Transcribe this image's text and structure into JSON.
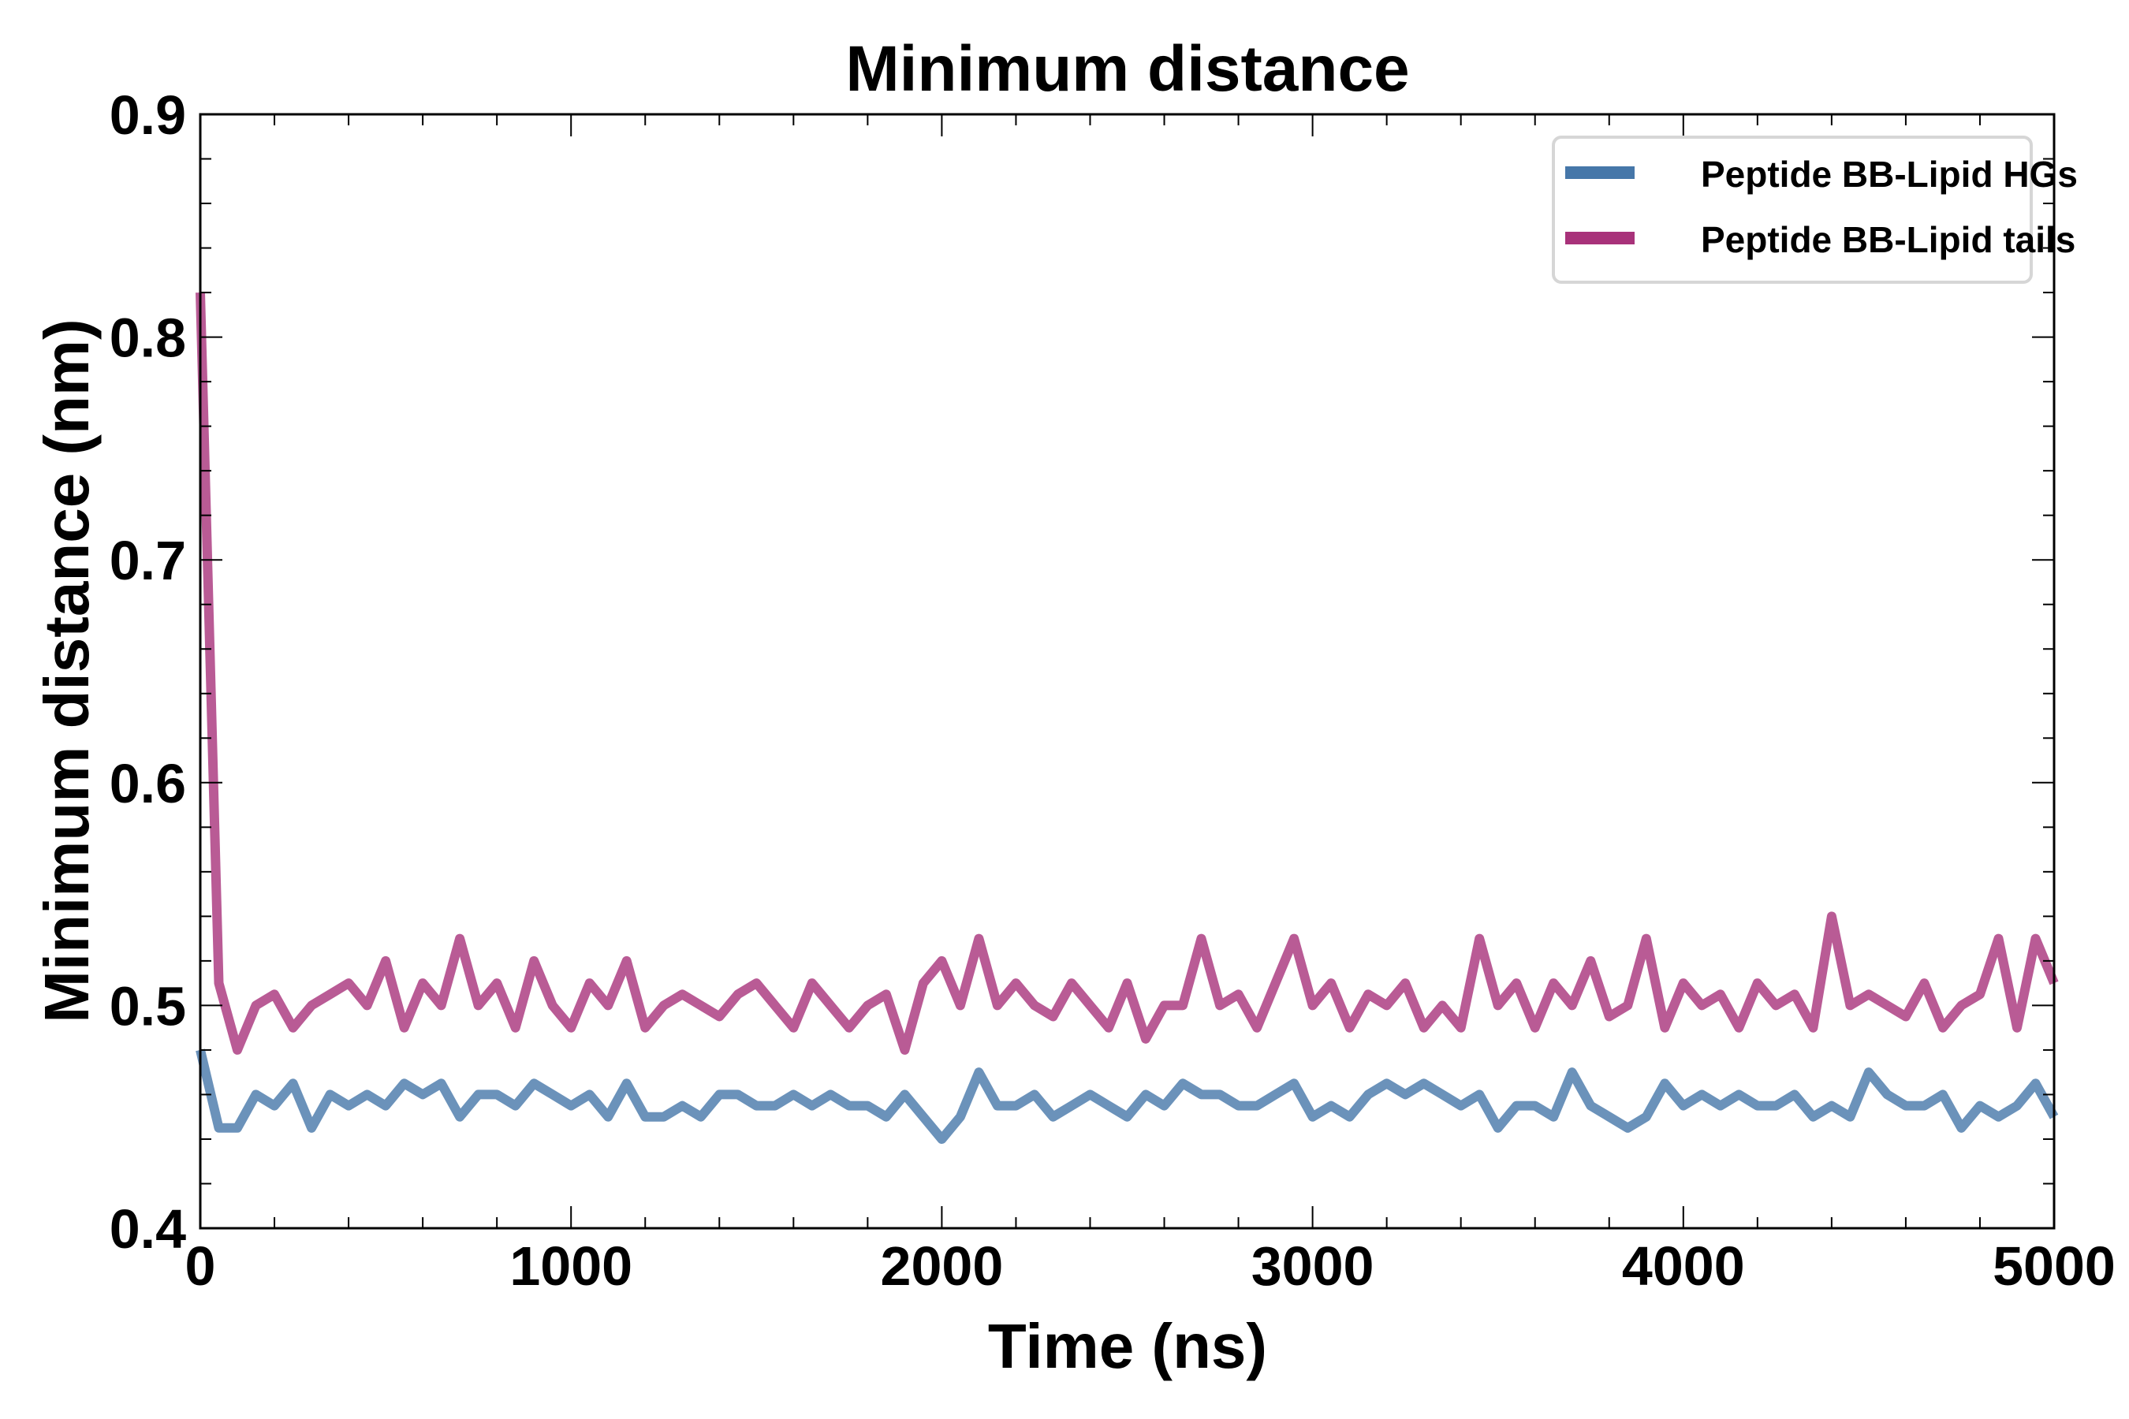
{
  "chart_data": {
    "type": "line",
    "title": "Minimum distance",
    "xlabel": "Time (ns)",
    "ylabel": "Minimum distance (nm)",
    "xlim": [
      0,
      5000
    ],
    "ylim": [
      0.4,
      0.9
    ],
    "xticks": [
      "0",
      "1000",
      "2000",
      "3000",
      "4000",
      "5000"
    ],
    "yticks": [
      "0.4",
      "0.5",
      "0.6",
      "0.7",
      "0.8",
      "0.9"
    ],
    "grid": false,
    "legend_position": "top-right",
    "x": [
      0,
      50,
      100,
      150,
      200,
      250,
      300,
      350,
      400,
      450,
      500,
      550,
      600,
      650,
      700,
      750,
      800,
      850,
      900,
      950,
      1000,
      1050,
      1100,
      1150,
      1200,
      1250,
      1300,
      1350,
      1400,
      1450,
      1500,
      1550,
      1600,
      1650,
      1700,
      1750,
      1800,
      1850,
      1900,
      1950,
      2000,
      2050,
      2100,
      2150,
      2200,
      2250,
      2300,
      2350,
      2400,
      2450,
      2500,
      2550,
      2600,
      2650,
      2700,
      2750,
      2800,
      2850,
      2900,
      2950,
      3000,
      3050,
      3100,
      3150,
      3200,
      3250,
      3300,
      3350,
      3400,
      3450,
      3500,
      3550,
      3600,
      3650,
      3700,
      3750,
      3800,
      3850,
      3900,
      3950,
      4000,
      4050,
      4100,
      4150,
      4200,
      4250,
      4300,
      4350,
      4400,
      4450,
      4500,
      4550,
      4600,
      4650,
      4700,
      4750,
      4800,
      4850,
      4900,
      4950,
      5000
    ],
    "series": [
      {
        "name": "Peptide BB-Lipid HGs",
        "color": "#4677a9",
        "values": [
          0.48,
          0.445,
          0.445,
          0.46,
          0.455,
          0.465,
          0.445,
          0.46,
          0.455,
          0.46,
          0.455,
          0.465,
          0.46,
          0.465,
          0.45,
          0.46,
          0.46,
          0.455,
          0.465,
          0.46,
          0.455,
          0.46,
          0.45,
          0.465,
          0.45,
          0.45,
          0.455,
          0.45,
          0.46,
          0.46,
          0.455,
          0.455,
          0.46,
          0.455,
          0.46,
          0.455,
          0.455,
          0.45,
          0.46,
          0.45,
          0.44,
          0.45,
          0.47,
          0.455,
          0.455,
          0.46,
          0.45,
          0.455,
          0.46,
          0.455,
          0.45,
          0.46,
          0.455,
          0.465,
          0.46,
          0.46,
          0.455,
          0.455,
          0.46,
          0.465,
          0.45,
          0.455,
          0.45,
          0.46,
          0.465,
          0.46,
          0.465,
          0.46,
          0.455,
          0.46,
          0.445,
          0.455,
          0.455,
          0.45,
          0.47,
          0.455,
          0.45,
          0.445,
          0.45,
          0.465,
          0.455,
          0.46,
          0.455,
          0.46,
          0.455,
          0.455,
          0.46,
          0.45,
          0.455,
          0.45,
          0.47,
          0.46,
          0.455,
          0.455,
          0.46,
          0.445,
          0.455,
          0.45,
          0.455,
          0.465,
          0.45
        ]
      },
      {
        "name": "Peptide BB-Lipid tails",
        "color": "#a8327a",
        "values": [
          0.82,
          0.51,
          0.48,
          0.5,
          0.505,
          0.49,
          0.5,
          0.505,
          0.51,
          0.5,
          0.52,
          0.49,
          0.51,
          0.5,
          0.53,
          0.5,
          0.51,
          0.49,
          0.52,
          0.5,
          0.49,
          0.51,
          0.5,
          0.52,
          0.49,
          0.5,
          0.505,
          0.5,
          0.495,
          0.505,
          0.51,
          0.5,
          0.49,
          0.51,
          0.5,
          0.49,
          0.5,
          0.505,
          0.48,
          0.51,
          0.52,
          0.5,
          0.53,
          0.5,
          0.51,
          0.5,
          0.495,
          0.51,
          0.5,
          0.49,
          0.51,
          0.485,
          0.5,
          0.5,
          0.53,
          0.5,
          0.505,
          0.49,
          0.51,
          0.53,
          0.5,
          0.51,
          0.49,
          0.505,
          0.5,
          0.51,
          0.49,
          0.5,
          0.49,
          0.53,
          0.5,
          0.51,
          0.49,
          0.51,
          0.5,
          0.52,
          0.495,
          0.5,
          0.53,
          0.49,
          0.51,
          0.5,
          0.505,
          0.49,
          0.51,
          0.5,
          0.505,
          0.49,
          0.54,
          0.5,
          0.505,
          0.5,
          0.495,
          0.51,
          0.49,
          0.5,
          0.505,
          0.53,
          0.49,
          0.53,
          0.51
        ]
      }
    ]
  }
}
